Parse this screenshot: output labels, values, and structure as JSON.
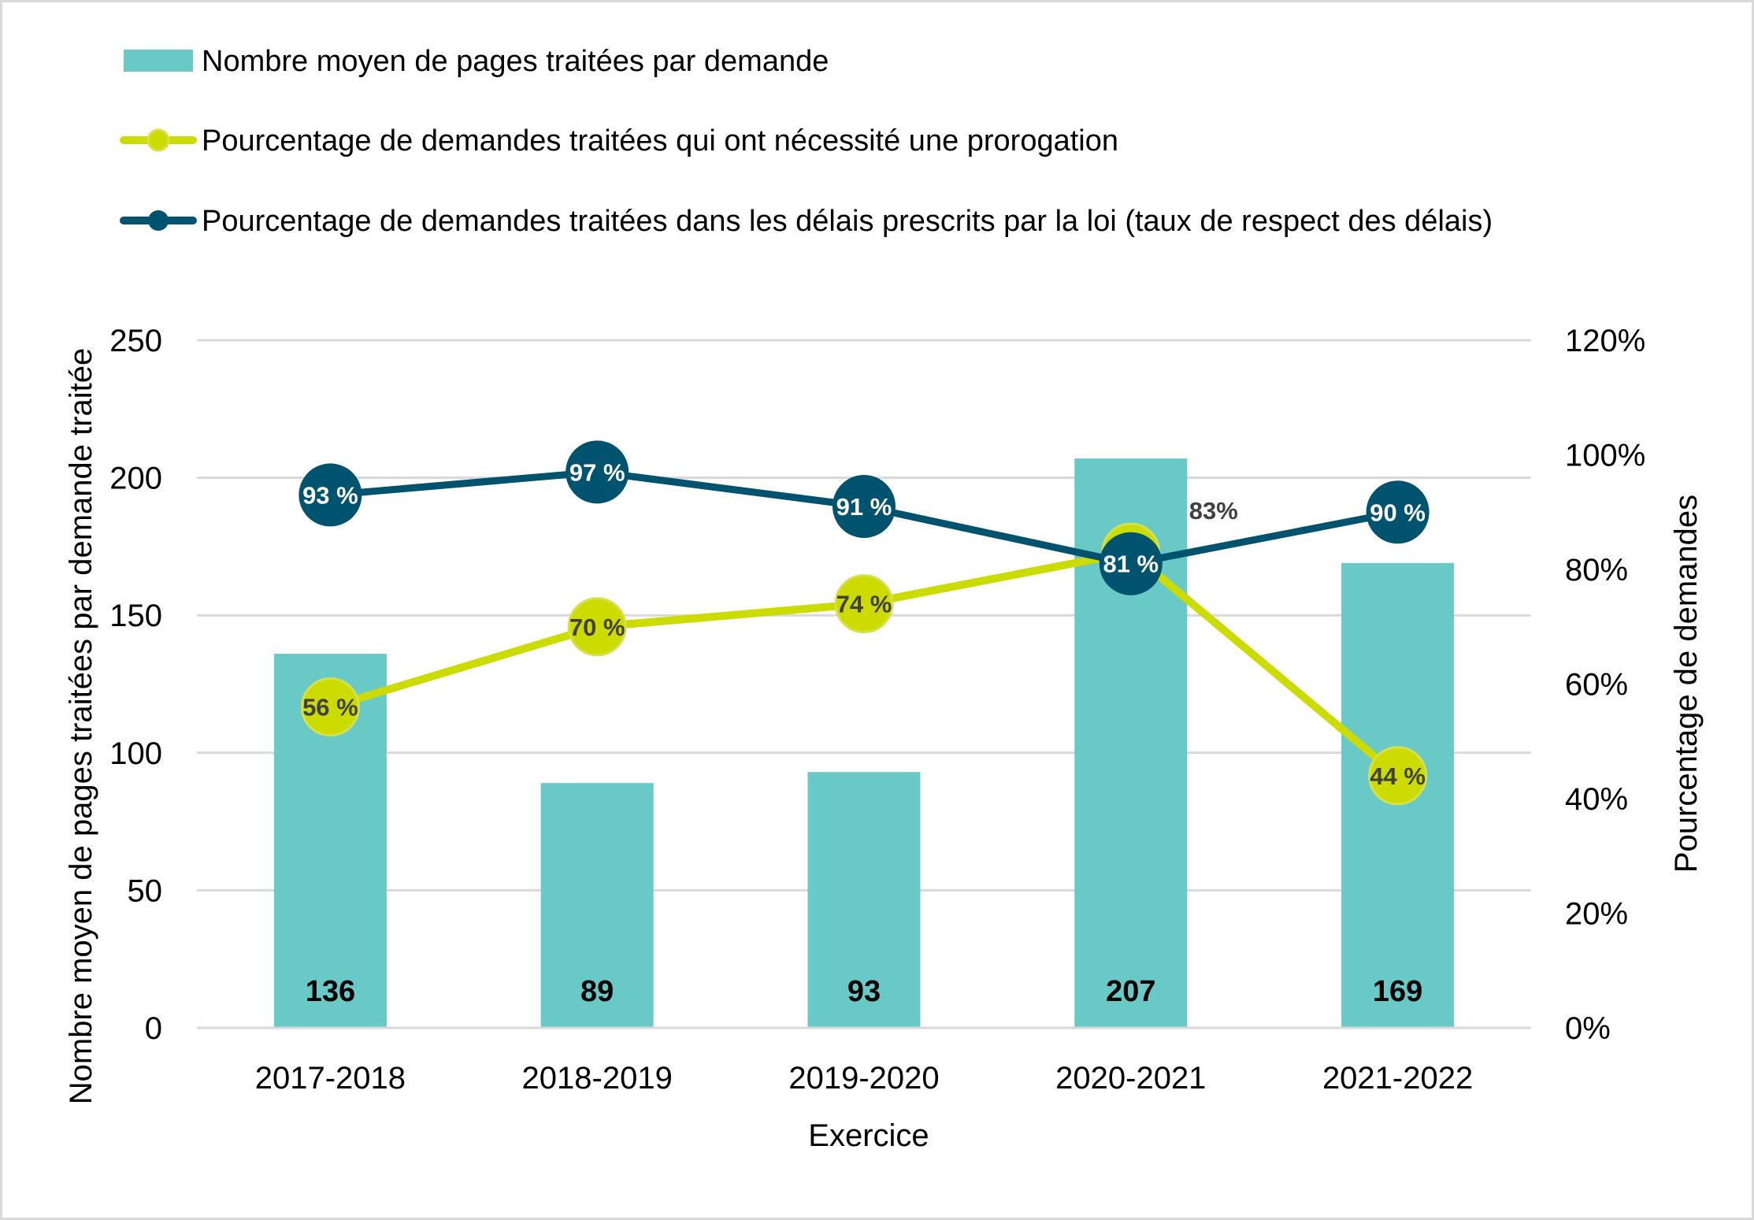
{
  "chart_data": {
    "type": "bar",
    "title": "",
    "xlabel": "Exercice",
    "ylabel": "Nombre moyen de pages traitées par demande traitée",
    "y2label": "Pourcentage de demandes",
    "categories": [
      "2017-2018",
      "2018-2019",
      "2019-2020",
      "2020-2021",
      "2021-2022"
    ],
    "ylim": [
      0,
      250
    ],
    "yticks": [
      0,
      50,
      100,
      150,
      200,
      250
    ],
    "ytick_labels": [
      "0",
      "50",
      "100",
      "150",
      "200",
      "250"
    ],
    "y2lim": [
      0,
      120
    ],
    "y2ticks": [
      0,
      20,
      40,
      60,
      80,
      100,
      120
    ],
    "y2tick_labels": [
      "0%",
      "20%",
      "40%",
      "60%",
      "80%",
      "100%",
      "120%"
    ],
    "grid": true,
    "legend_position": "top-left",
    "series": [
      {
        "name": "Nombre moyen de pages traitées par demande",
        "type": "bar",
        "axis": "left",
        "color": "#68C9C7",
        "values": [
          136,
          89,
          93,
          207,
          169
        ],
        "labels": [
          "136",
          "89",
          "93",
          "207",
          "169"
        ]
      },
      {
        "name": "Pourcentage de demandes traitées qui ont nécessité une prorogation",
        "type": "line",
        "axis": "right",
        "color": "#CCDB00",
        "values": [
          56,
          70,
          74,
          83,
          44
        ],
        "labels": [
          "56 %",
          "70 %",
          "74 %",
          "83%",
          "44 %"
        ]
      },
      {
        "name": "Pourcentage de demandes traitées dans les délais prescrits par la loi (taux de respect des délais)",
        "type": "line",
        "axis": "right",
        "color": "#00536F",
        "values": [
          93,
          97,
          91,
          81,
          90
        ],
        "labels": [
          "93 %",
          "97 %",
          "91 %",
          "81 %",
          "90 %"
        ]
      }
    ]
  }
}
